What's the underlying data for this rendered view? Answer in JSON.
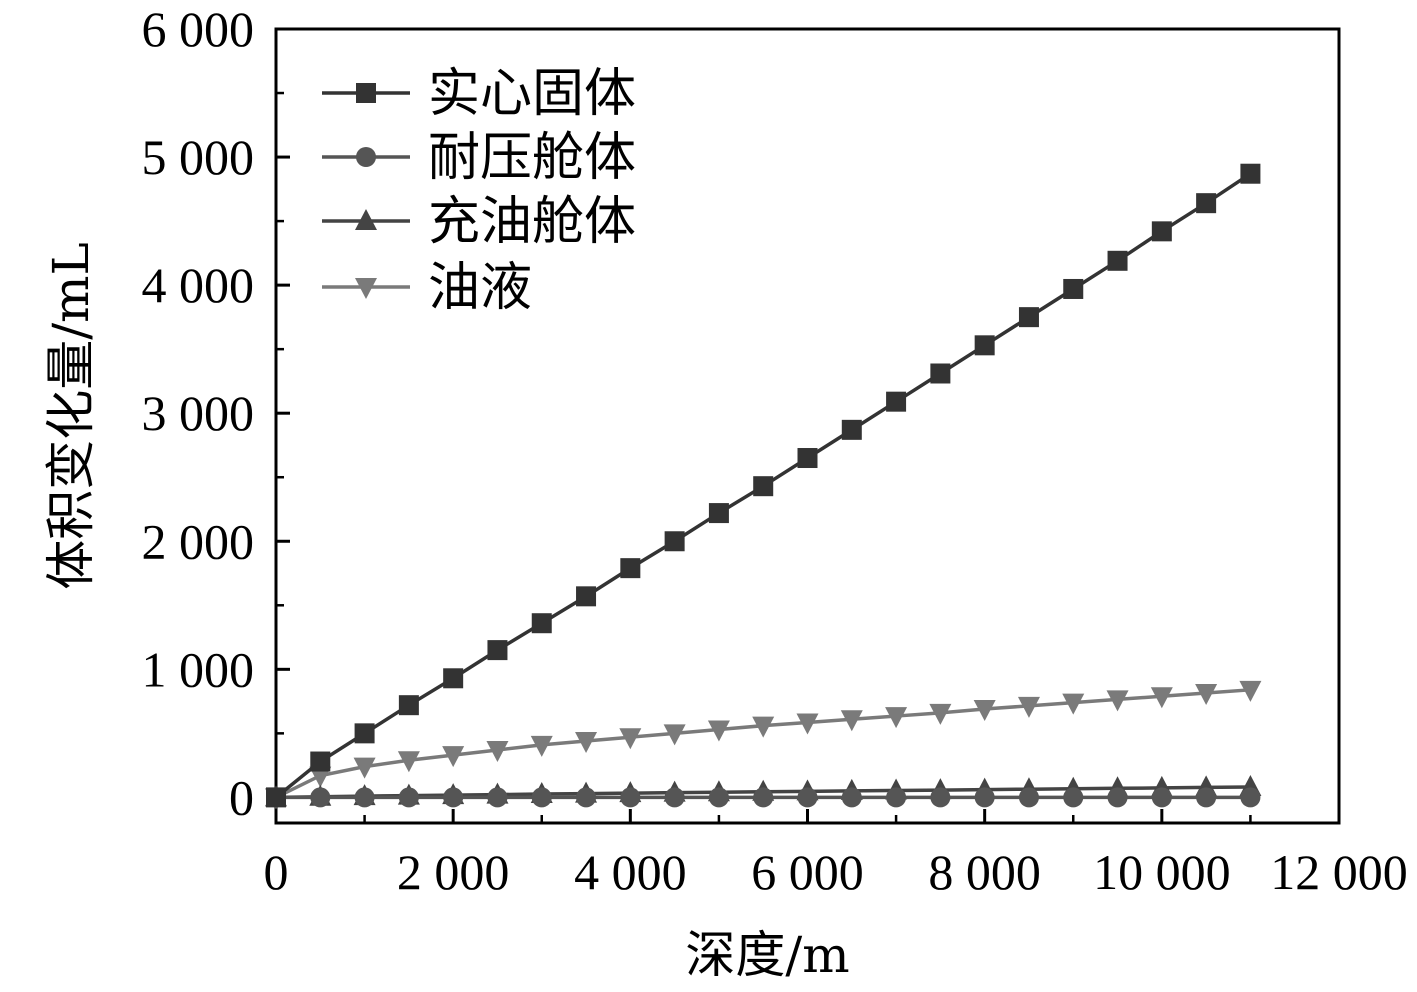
{
  "chart_data": {
    "type": "line",
    "xlabel": "深度/m",
    "ylabel": "体积变化量/mL",
    "xlim": [
      0,
      12000
    ],
    "ylim": [
      -200,
      6000
    ],
    "xticks": [
      0,
      2000,
      4000,
      6000,
      8000,
      10000,
      12000
    ],
    "xtick_labels": [
      "0",
      "2 000",
      "4 000",
      "6 000",
      "8 000",
      "10 000",
      "12 000"
    ],
    "yticks": [
      0,
      1000,
      2000,
      3000,
      4000,
      5000,
      6000
    ],
    "ytick_labels": [
      "0",
      "1 000",
      "2 000",
      "3 000",
      "4 000",
      "5 000",
      "6 000"
    ],
    "grid": false,
    "legend_position": "top-left",
    "x": [
      0,
      500,
      1000,
      1500,
      2000,
      2500,
      3000,
      3500,
      4000,
      4500,
      5000,
      5500,
      6000,
      6500,
      7000,
      7500,
      8000,
      8500,
      9000,
      9500,
      10000,
      10500,
      11000
    ],
    "series": [
      {
        "name": "实心固体",
        "marker": "square",
        "color": "#333333",
        "values": [
          0,
          280,
          500,
          720,
          930,
          1150,
          1360,
          1570,
          1790,
          2000,
          2220,
          2430,
          2650,
          2870,
          3090,
          3310,
          3530,
          3750,
          3970,
          4190,
          4420,
          4640,
          4870
        ]
      },
      {
        "name": "耐压舱体",
        "marker": "circle",
        "color": "#555555",
        "values": [
          0,
          0,
          0,
          0,
          0,
          0,
          0,
          0,
          0,
          0,
          0,
          0,
          0,
          0,
          0,
          0,
          0,
          0,
          0,
          0,
          0,
          0,
          0
        ]
      },
      {
        "name": "充油舱体",
        "marker": "triangle-up",
        "color": "#444444",
        "values": [
          0,
          5,
          10,
          14,
          18,
          22,
          26,
          29,
          33,
          37,
          40,
          44,
          47,
          51,
          54,
          57,
          61,
          64,
          67,
          71,
          74,
          78,
          81
        ]
      },
      {
        "name": "油液",
        "marker": "triangle-down",
        "color": "#7a7a7a",
        "values": [
          0,
          170,
          240,
          290,
          330,
          370,
          410,
          440,
          470,
          500,
          530,
          560,
          585,
          610,
          635,
          660,
          690,
          715,
          740,
          765,
          790,
          815,
          840
        ]
      }
    ]
  }
}
